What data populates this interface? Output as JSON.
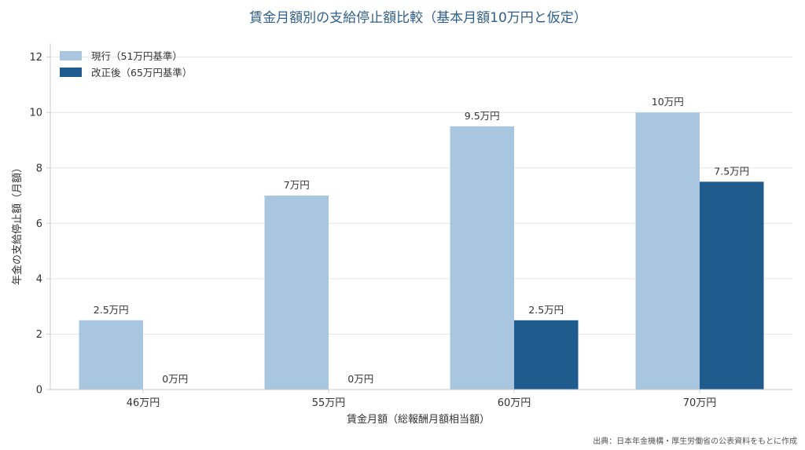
{
  "chart_data": {
    "type": "bar",
    "title": "賃金月額別の支給停止額比較（基本月額10万円と仮定）",
    "xlabel": "賃金月額（総報酬月額相当額）",
    "ylabel": "年金の支給停止額（月額）",
    "categories": [
      "46万円",
      "55万円",
      "60万円",
      "70万円"
    ],
    "ylim": [
      0,
      12.5
    ],
    "yticks": [
      0,
      2,
      4,
      6,
      8,
      10,
      12
    ],
    "grid": true,
    "legend_position": "top-left",
    "series": [
      {
        "name": "現行（51万円基準）",
        "color": "#a9c6e0",
        "values": [
          2.5,
          7,
          9.5,
          10
        ],
        "labels": [
          "2.5万円",
          "7万円",
          "9.5万円",
          "10万円"
        ]
      },
      {
        "name": "改正後（65万円基準）",
        "color": "#1f5b8c",
        "values": [
          0,
          0,
          2.5,
          7.5
        ],
        "labels": [
          "0万円",
          "0万円",
          "2.5万円",
          "7.5万円"
        ]
      }
    ],
    "source": "出典：日本年金機構・厚生労働省の公表資料をもとに作成"
  }
}
